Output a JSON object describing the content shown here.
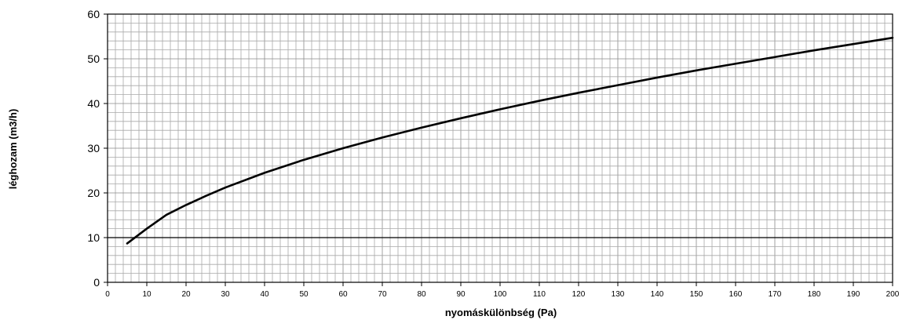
{
  "chart_data": {
    "type": "line",
    "title": "",
    "xlabel": "nyomáskülönbség (Pa)",
    "ylabel": "léghozam (m3/h)",
    "xlim": [
      0,
      200
    ],
    "ylim": [
      0,
      60
    ],
    "x_ticks": [
      "0",
      "10",
      "20",
      "30",
      "40",
      "50",
      "60",
      "70",
      "80",
      "90",
      "100",
      "110",
      "120",
      "130",
      "140",
      "150",
      "160",
      "170",
      "180",
      "190",
      "200"
    ],
    "y_ticks": [
      "0",
      "10",
      "20",
      "30",
      "40",
      "50",
      "60"
    ],
    "grid": true,
    "minor_grid": {
      "x_step": 2,
      "y_step": 2
    },
    "highlight_gridline_y": 10,
    "legend": "none",
    "series": [
      {
        "color": "#000000",
        "x": [
          5,
          10,
          15,
          20,
          25,
          30,
          40,
          50,
          60,
          70,
          80,
          90,
          100,
          110,
          120,
          130,
          140,
          150,
          160,
          170,
          180,
          190,
          200
        ],
        "y": [
          8.7,
          12.0,
          15.1,
          17.3,
          19.3,
          21.2,
          24.5,
          27.4,
          30.0,
          32.4,
          34.6,
          36.7,
          38.7,
          40.6,
          42.4,
          44.1,
          45.8,
          47.4,
          48.9,
          50.4,
          51.9,
          53.3,
          54.7
        ]
      }
    ]
  }
}
